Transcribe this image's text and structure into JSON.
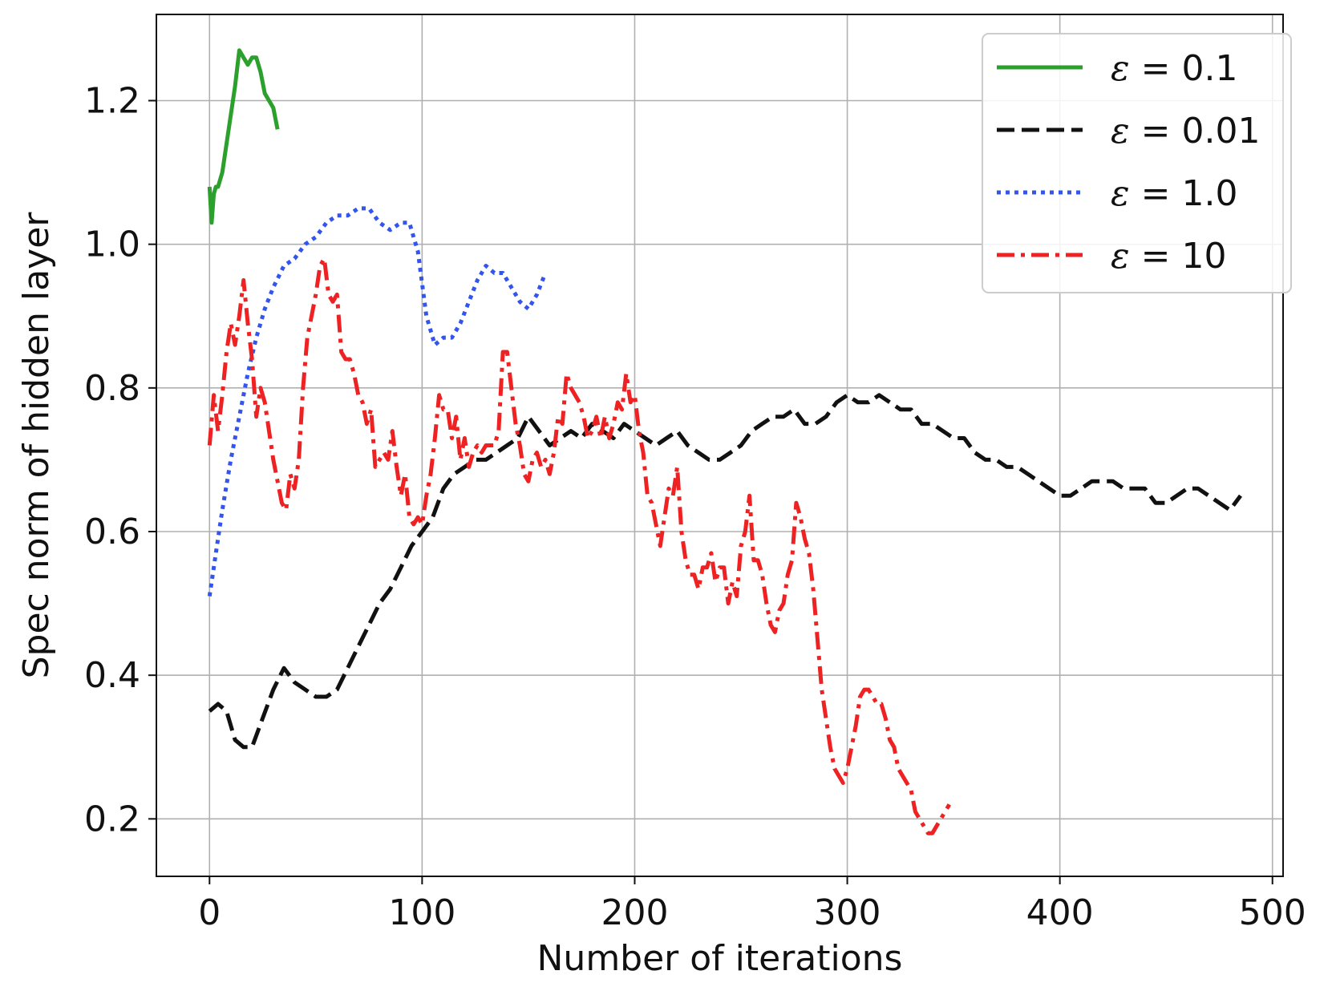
{
  "chart_data": {
    "type": "line",
    "title": "",
    "xlabel": "Number of iterations",
    "ylabel": "Spec norm of hidden layer",
    "xlim": [
      -25,
      505
    ],
    "ylim": [
      0.12,
      1.32
    ],
    "xticks": [
      0,
      100,
      200,
      300,
      400,
      500
    ],
    "xtick_labels": [
      "0",
      "100",
      "200",
      "300",
      "400",
      "500"
    ],
    "yticks": [
      0.2,
      0.4,
      0.6,
      0.8,
      1.0,
      1.2
    ],
    "ytick_labels": [
      "0.2",
      "0.4",
      "0.6",
      "0.8",
      "1.0",
      "1.2"
    ],
    "grid": true,
    "legend_position": "top-right",
    "series": [
      {
        "name": "ε = 0.1",
        "legend_label": "ε = 0.1",
        "color": "#2ca02c",
        "style": "solid",
        "x": [
          0,
          1,
          2,
          3,
          4,
          6,
          8,
          10,
          12,
          14,
          16,
          18,
          20,
          22,
          24,
          26,
          28,
          30,
          32
        ],
        "y": [
          1.08,
          1.03,
          1.07,
          1.08,
          1.08,
          1.1,
          1.14,
          1.18,
          1.22,
          1.27,
          1.26,
          1.25,
          1.26,
          1.26,
          1.24,
          1.21,
          1.2,
          1.19,
          1.16
        ]
      },
      {
        "name": "ε = 0.01",
        "legend_label": "ε = 0.01",
        "color": "#111111",
        "style": "dashed",
        "x": [
          0,
          4,
          8,
          12,
          16,
          20,
          25,
          30,
          35,
          40,
          45,
          50,
          55,
          60,
          65,
          70,
          75,
          80,
          85,
          90,
          95,
          100,
          105,
          110,
          115,
          120,
          125,
          130,
          135,
          140,
          145,
          150,
          155,
          160,
          165,
          170,
          175,
          180,
          185,
          190,
          195,
          200,
          205,
          210,
          215,
          220,
          225,
          230,
          235,
          240,
          245,
          250,
          255,
          260,
          265,
          270,
          275,
          280,
          285,
          290,
          295,
          300,
          305,
          310,
          315,
          320,
          325,
          330,
          335,
          340,
          345,
          350,
          355,
          360,
          365,
          370,
          375,
          380,
          385,
          390,
          395,
          400,
          405,
          410,
          415,
          420,
          425,
          430,
          435,
          440,
          445,
          450,
          455,
          460,
          465,
          470,
          475,
          480,
          485
        ],
        "y": [
          0.35,
          0.36,
          0.35,
          0.31,
          0.3,
          0.3,
          0.34,
          0.38,
          0.41,
          0.39,
          0.38,
          0.37,
          0.37,
          0.38,
          0.41,
          0.44,
          0.47,
          0.5,
          0.52,
          0.55,
          0.58,
          0.6,
          0.62,
          0.66,
          0.68,
          0.69,
          0.7,
          0.7,
          0.71,
          0.72,
          0.73,
          0.76,
          0.74,
          0.72,
          0.73,
          0.74,
          0.73,
          0.75,
          0.74,
          0.73,
          0.75,
          0.74,
          0.73,
          0.72,
          0.73,
          0.74,
          0.72,
          0.71,
          0.7,
          0.7,
          0.71,
          0.72,
          0.74,
          0.75,
          0.76,
          0.76,
          0.77,
          0.75,
          0.75,
          0.76,
          0.78,
          0.79,
          0.78,
          0.78,
          0.79,
          0.78,
          0.77,
          0.77,
          0.75,
          0.75,
          0.74,
          0.73,
          0.73,
          0.71,
          0.7,
          0.7,
          0.69,
          0.69,
          0.68,
          0.67,
          0.66,
          0.65,
          0.65,
          0.66,
          0.67,
          0.67,
          0.67,
          0.66,
          0.66,
          0.66,
          0.64,
          0.64,
          0.65,
          0.66,
          0.66,
          0.65,
          0.64,
          0.63,
          0.65
        ]
      },
      {
        "name": "ε = 1.0",
        "legend_label": "ε = 1.0",
        "color": "#3355ee",
        "style": "dotted",
        "x": [
          0,
          3,
          6,
          10,
          14,
          18,
          22,
          26,
          30,
          35,
          40,
          45,
          50,
          55,
          60,
          65,
          70,
          75,
          80,
          85,
          90,
          94,
          98,
          102,
          106,
          110,
          114,
          118,
          122,
          126,
          130,
          134,
          138,
          142,
          146,
          150,
          154,
          158
        ],
        "y": [
          0.51,
          0.57,
          0.63,
          0.7,
          0.76,
          0.82,
          0.87,
          0.91,
          0.94,
          0.97,
          0.98,
          1.0,
          1.01,
          1.03,
          1.04,
          1.04,
          1.05,
          1.05,
          1.03,
          1.02,
          1.03,
          1.03,
          0.99,
          0.9,
          0.86,
          0.87,
          0.87,
          0.89,
          0.92,
          0.95,
          0.97,
          0.96,
          0.96,
          0.94,
          0.92,
          0.91,
          0.93,
          0.96
        ]
      },
      {
        "name": "ε = 10",
        "legend_label": "ε = 10",
        "color": "#ee2222",
        "style": "dashdot",
        "x": [
          0,
          2,
          4,
          6,
          8,
          10,
          12,
          14,
          16,
          18,
          20,
          22,
          24,
          26,
          28,
          30,
          32,
          34,
          36,
          38,
          40,
          42,
          44,
          46,
          48,
          50,
          52,
          54,
          56,
          58,
          60,
          62,
          64,
          66,
          68,
          70,
          72,
          74,
          76,
          78,
          80,
          82,
          84,
          86,
          88,
          90,
          92,
          94,
          96,
          98,
          100,
          102,
          104,
          106,
          108,
          110,
          112,
          114,
          116,
          118,
          120,
          122,
          124,
          126,
          128,
          130,
          132,
          134,
          136,
          138,
          140,
          142,
          144,
          146,
          148,
          150,
          152,
          154,
          156,
          158,
          160,
          162,
          164,
          166,
          168,
          170,
          172,
          174,
          176,
          178,
          180,
          182,
          184,
          186,
          188,
          190,
          192,
          194,
          196,
          198,
          200,
          202,
          204,
          206,
          208,
          210,
          212,
          214,
          216,
          218,
          220,
          222,
          224,
          226,
          228,
          230,
          232,
          234,
          236,
          238,
          240,
          242,
          244,
          246,
          248,
          250,
          252,
          254,
          256,
          258,
          260,
          262,
          264,
          266,
          268,
          270,
          272,
          274,
          276,
          278,
          280,
          282,
          284,
          286,
          288,
          290,
          292,
          294,
          296,
          298,
          300,
          302,
          304,
          306,
          308,
          310,
          312,
          314,
          316,
          318,
          320,
          322,
          324,
          326,
          328,
          330,
          332,
          334,
          336,
          338,
          340,
          342,
          344,
          346,
          348
        ],
        "y": [
          0.72,
          0.79,
          0.74,
          0.79,
          0.85,
          0.89,
          0.86,
          0.9,
          0.95,
          0.89,
          0.84,
          0.76,
          0.8,
          0.78,
          0.74,
          0.7,
          0.67,
          0.64,
          0.63,
          0.68,
          0.66,
          0.7,
          0.8,
          0.87,
          0.9,
          0.93,
          0.97,
          0.98,
          0.93,
          0.92,
          0.93,
          0.85,
          0.84,
          0.84,
          0.82,
          0.79,
          0.78,
          0.75,
          0.77,
          0.69,
          0.7,
          0.71,
          0.7,
          0.74,
          0.69,
          0.65,
          0.68,
          0.62,
          0.61,
          0.62,
          0.61,
          0.65,
          0.68,
          0.73,
          0.79,
          0.77,
          0.77,
          0.73,
          0.76,
          0.7,
          0.73,
          0.69,
          0.71,
          0.72,
          0.71,
          0.72,
          0.72,
          0.72,
          0.74,
          0.85,
          0.85,
          0.8,
          0.75,
          0.72,
          0.68,
          0.67,
          0.7,
          0.71,
          0.69,
          0.7,
          0.68,
          0.71,
          0.76,
          0.75,
          0.82,
          0.8,
          0.79,
          0.78,
          0.76,
          0.73,
          0.74,
          0.76,
          0.73,
          0.76,
          0.73,
          0.75,
          0.78,
          0.77,
          0.82,
          0.78,
          0.79,
          0.74,
          0.71,
          0.65,
          0.64,
          0.61,
          0.58,
          0.62,
          0.66,
          0.65,
          0.69,
          0.6,
          0.56,
          0.54,
          0.54,
          0.52,
          0.55,
          0.55,
          0.57,
          0.53,
          0.55,
          0.55,
          0.5,
          0.53,
          0.51,
          0.58,
          0.6,
          0.65,
          0.56,
          0.56,
          0.54,
          0.5,
          0.47,
          0.46,
          0.49,
          0.5,
          0.54,
          0.56,
          0.64,
          0.62,
          0.59,
          0.57,
          0.52,
          0.45,
          0.38,
          0.34,
          0.3,
          0.27,
          0.26,
          0.25,
          0.27,
          0.3,
          0.33,
          0.37,
          0.38,
          0.38,
          0.37,
          0.36,
          0.36,
          0.34,
          0.31,
          0.3,
          0.27,
          0.26,
          0.25,
          0.24,
          0.21,
          0.2,
          0.19,
          0.18,
          0.18,
          0.19,
          0.2,
          0.21,
          0.22
        ]
      }
    ]
  }
}
